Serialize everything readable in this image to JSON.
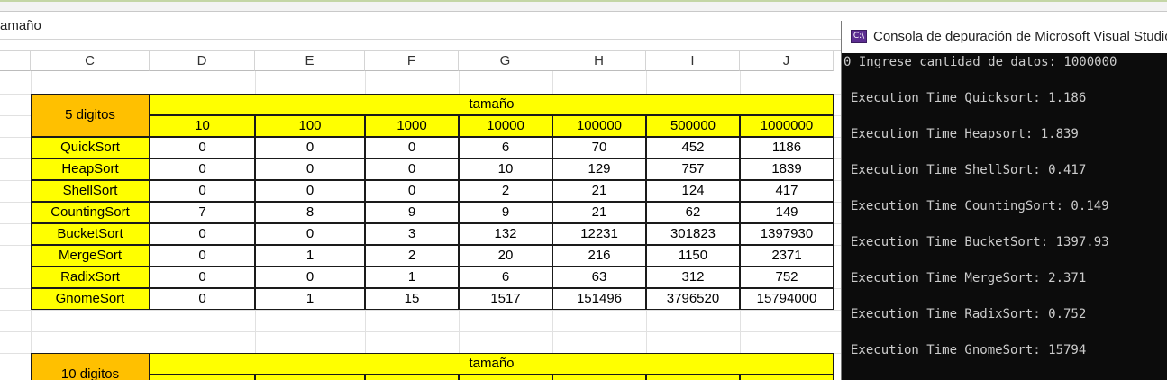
{
  "formula_bar": {
    "text": "amaño"
  },
  "columns": [
    "C",
    "D",
    "E",
    "F",
    "G",
    "H",
    "I",
    "J"
  ],
  "table1": {
    "corner_label": "5 digitos",
    "size_header": "tamaño",
    "sizes": [
      "10",
      "100",
      "1000",
      "10000",
      "100000",
      "500000",
      "1000000"
    ],
    "rows": [
      {
        "name": "QuickSort",
        "values": [
          "0",
          "0",
          "0",
          "6",
          "70",
          "452",
          "1186"
        ]
      },
      {
        "name": "HeapSort",
        "values": [
          "0",
          "0",
          "0",
          "10",
          "129",
          "757",
          "1839"
        ]
      },
      {
        "name": "ShellSort",
        "values": [
          "0",
          "0",
          "0",
          "2",
          "21",
          "124",
          "417"
        ]
      },
      {
        "name": "CountingSort",
        "values": [
          "7",
          "8",
          "9",
          "9",
          "21",
          "62",
          "149"
        ]
      },
      {
        "name": "BucketSort",
        "values": [
          "0",
          "0",
          "3",
          "132",
          "12231",
          "301823",
          "1397930"
        ]
      },
      {
        "name": "MergeSort",
        "values": [
          "0",
          "1",
          "2",
          "20",
          "216",
          "1150",
          "2371"
        ]
      },
      {
        "name": "RadixSort",
        "values": [
          "0",
          "0",
          "1",
          "6",
          "63",
          "312",
          "752"
        ]
      },
      {
        "name": "GnomeSort",
        "values": [
          "0",
          "1",
          "15",
          "1517",
          "151496",
          "3796520",
          "15794000"
        ]
      }
    ]
  },
  "table2": {
    "corner_label": "10 digitos",
    "size_header": "tamaño"
  },
  "console": {
    "title": "Consola de depuración de Microsoft Visual Studio",
    "icon_text": "C:\\",
    "lines": [
      "0 Ingrese cantidad de datos: 1000000",
      "Execution Time Quicksort: 1.186",
      "Execution Time Heapsort: 1.839",
      "Execution Time ShellSort: 0.417",
      "Execution Time CountingSort: 0.149",
      "Execution Time BucketSort: 1397.93",
      "Execution Time MergeSort: 2.371",
      "Execution Time RadixSort: 0.752",
      "Execution Time GnomeSort: 15794"
    ]
  }
}
